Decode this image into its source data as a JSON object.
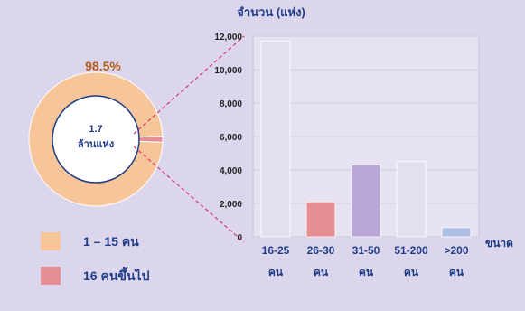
{
  "chart_data": [
    {
      "type": "pie",
      "style": "donut",
      "slices": [
        {
          "label": "1 – 15 คน",
          "value": 98.5,
          "color": "#f7c59a"
        },
        {
          "label": "16 คนขึ้นไป",
          "value": 1.5,
          "color": "#e58f93"
        }
      ],
      "value_label": "98.5%",
      "center_text": [
        "1.7",
        "ล้านแห่ง"
      ]
    },
    {
      "type": "bar",
      "ylabel": "จำนวน (แห่ง)",
      "xlabel": "ขนาด",
      "ylim": [
        0,
        12000
      ],
      "yticks": [
        0,
        2000,
        4000,
        6000,
        8000,
        10000,
        12000
      ],
      "ytick_labels": [
        "0",
        "2,000",
        "4,000",
        "6,000",
        "8,000",
        "10,000",
        "12,000"
      ],
      "categories": [
        "16-25 คน",
        "26-30 คน",
        "31-50 คน",
        "51-200 คน",
        ">200 คน"
      ],
      "category_lines": [
        [
          "16-25",
          "คน"
        ],
        [
          "26-30",
          "คน"
        ],
        [
          "31-50",
          "คน"
        ],
        [
          "51-200",
          "คน"
        ],
        [
          ">200",
          "คน"
        ]
      ],
      "values": [
        11700,
        2100,
        4300,
        4500,
        550
      ],
      "colors": [
        "#e2e0ee",
        "#e58f93",
        "#b9a7da",
        "#e2e0ee",
        "#aebfe6"
      ]
    }
  ],
  "legend": [
    {
      "label": "1 – 15 คน",
      "color": "#f7c59a"
    },
    {
      "label": "16 คนขึ้นไป",
      "color": "#e58f93"
    }
  ],
  "colors": {
    "background": "#dcd6ec",
    "text": "#1f3c88",
    "percent": "#b45a1a",
    "connector": "#d2386c"
  }
}
